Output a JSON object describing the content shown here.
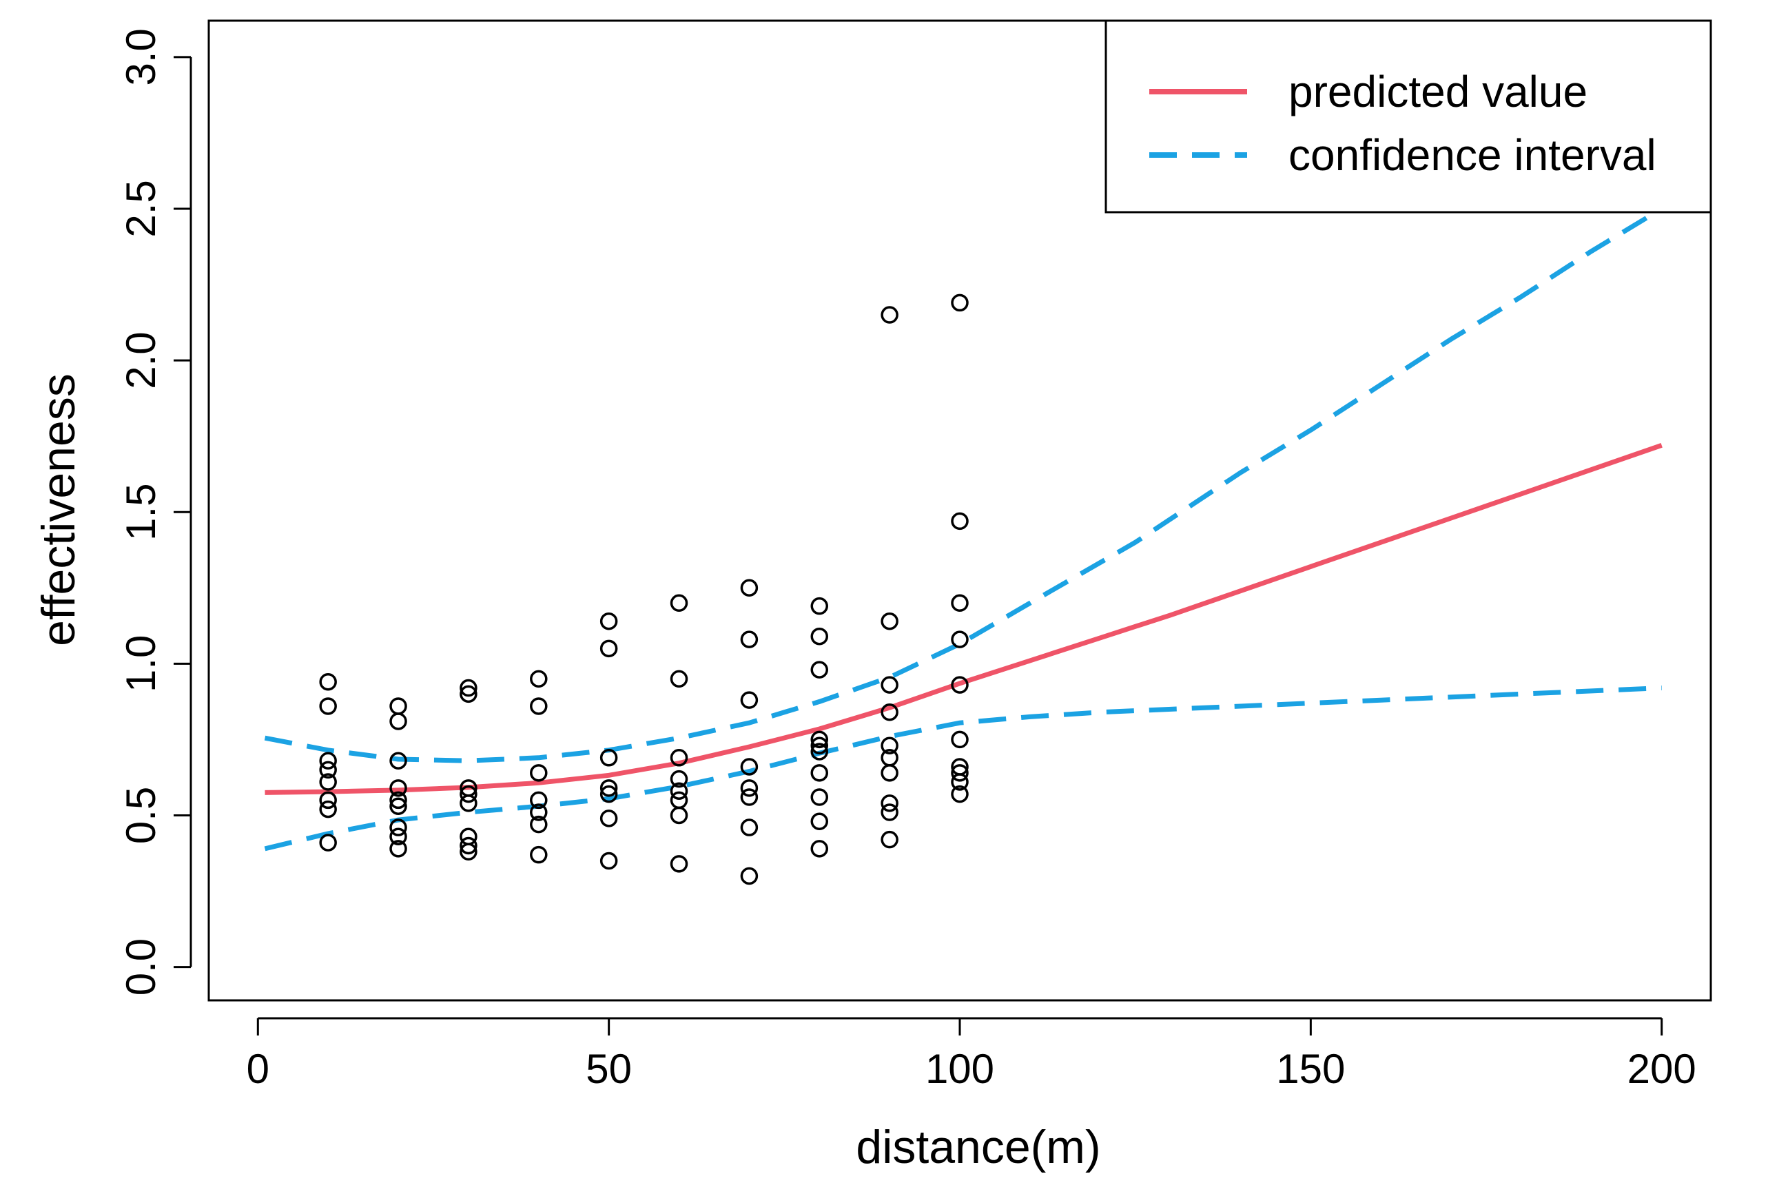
{
  "chart_data": {
    "type": "scatter",
    "title": "",
    "xlabel": "distance(m)",
    "ylabel": "effectiveness",
    "xlim": [
      -7,
      207
    ],
    "ylim": [
      -0.11,
      3.12
    ],
    "x_ticks": [
      0,
      50,
      100,
      150,
      200
    ],
    "y_ticks": [
      0.0,
      0.5,
      1.0,
      1.5,
      2.0,
      2.5,
      3.0
    ],
    "x_tick_labels": [
      "0",
      "50",
      "100",
      "150",
      "200"
    ],
    "y_tick_labels": [
      "0.0",
      "0.5",
      "1.0",
      "1.5",
      "2.0",
      "2.5",
      "3.0"
    ],
    "grid": false,
    "legend": {
      "position": "top-right",
      "entries": [
        {
          "label": "predicted value",
          "color": "#ef5468",
          "style": "solid"
        },
        {
          "label": "confidence interval",
          "color": "#1ba2e3",
          "style": "dashed"
        }
      ]
    },
    "series": [
      {
        "name": "observations",
        "kind": "points",
        "color": "#000000",
        "points": [
          [
            10,
            0.94
          ],
          [
            10,
            0.86
          ],
          [
            10,
            0.68
          ],
          [
            10,
            0.65
          ],
          [
            10,
            0.61
          ],
          [
            10,
            0.55
          ],
          [
            10,
            0.52
          ],
          [
            10,
            0.41
          ],
          [
            20,
            0.86
          ],
          [
            20,
            0.81
          ],
          [
            20,
            0.68
          ],
          [
            20,
            0.59
          ],
          [
            20,
            0.55
          ],
          [
            20,
            0.53
          ],
          [
            20,
            0.46
          ],
          [
            20,
            0.43
          ],
          [
            20,
            0.39
          ],
          [
            30,
            0.92
          ],
          [
            30,
            0.9
          ],
          [
            30,
            0.59
          ],
          [
            30,
            0.57
          ],
          [
            30,
            0.54
          ],
          [
            30,
            0.43
          ],
          [
            30,
            0.4
          ],
          [
            30,
            0.38
          ],
          [
            40,
            0.95
          ],
          [
            40,
            0.86
          ],
          [
            40,
            0.64
          ],
          [
            40,
            0.55
          ],
          [
            40,
            0.51
          ],
          [
            40,
            0.47
          ],
          [
            40,
            0.37
          ],
          [
            50,
            1.14
          ],
          [
            50,
            1.05
          ],
          [
            50,
            0.69
          ],
          [
            50,
            0.59
          ],
          [
            50,
            0.57
          ],
          [
            50,
            0.49
          ],
          [
            50,
            0.35
          ],
          [
            60,
            1.2
          ],
          [
            60,
            0.95
          ],
          [
            60,
            0.69
          ],
          [
            60,
            0.62
          ],
          [
            60,
            0.58
          ],
          [
            60,
            0.55
          ],
          [
            60,
            0.5
          ],
          [
            60,
            0.34
          ],
          [
            70,
            1.25
          ],
          [
            70,
            1.08
          ],
          [
            70,
            0.88
          ],
          [
            70,
            0.66
          ],
          [
            70,
            0.59
          ],
          [
            70,
            0.56
          ],
          [
            70,
            0.46
          ],
          [
            70,
            0.3
          ],
          [
            80,
            1.19
          ],
          [
            80,
            1.09
          ],
          [
            80,
            0.98
          ],
          [
            80,
            0.75
          ],
          [
            80,
            0.73
          ],
          [
            80,
            0.71
          ],
          [
            80,
            0.64
          ],
          [
            80,
            0.56
          ],
          [
            80,
            0.48
          ],
          [
            80,
            0.39
          ],
          [
            90,
            2.15
          ],
          [
            90,
            1.14
          ],
          [
            90,
            0.93
          ],
          [
            90,
            0.84
          ],
          [
            90,
            0.73
          ],
          [
            90,
            0.69
          ],
          [
            90,
            0.64
          ],
          [
            90,
            0.54
          ],
          [
            90,
            0.51
          ],
          [
            90,
            0.42
          ],
          [
            100,
            2.19
          ],
          [
            100,
            1.47
          ],
          [
            100,
            1.2
          ],
          [
            100,
            1.08
          ],
          [
            100,
            0.93
          ],
          [
            100,
            0.75
          ],
          [
            100,
            0.66
          ],
          [
            100,
            0.64
          ],
          [
            100,
            0.61
          ],
          [
            100,
            0.57
          ]
        ]
      },
      {
        "name": "predicted value",
        "kind": "line",
        "color": "#ef5468",
        "x": [
          1,
          10,
          20,
          30,
          40,
          50,
          60,
          70,
          80,
          90,
          100,
          110,
          120,
          130,
          140,
          150,
          160,
          170,
          180,
          190,
          200
        ],
        "values": [
          0.575,
          0.578,
          0.583,
          0.592,
          0.607,
          0.632,
          0.672,
          0.726,
          0.785,
          0.855,
          0.935,
          1.01,
          1.085,
          1.16,
          1.24,
          1.32,
          1.4,
          1.48,
          1.56,
          1.64,
          1.72
        ]
      },
      {
        "name": "confidence interval upper",
        "kind": "line",
        "color": "#1ba2e3",
        "dashed": true,
        "x": [
          1,
          10,
          20,
          30,
          40,
          50,
          60,
          70,
          80,
          90,
          100,
          110,
          125,
          140,
          150,
          160,
          170,
          180,
          190,
          200
        ],
        "values": [
          0.755,
          0.715,
          0.685,
          0.68,
          0.69,
          0.715,
          0.755,
          0.805,
          0.875,
          0.955,
          1.065,
          1.2,
          1.4,
          1.63,
          1.77,
          1.92,
          2.07,
          2.21,
          2.36,
          2.5
        ]
      },
      {
        "name": "confidence interval lower",
        "kind": "line",
        "color": "#1ba2e3",
        "dashed": true,
        "x": [
          1,
          10,
          20,
          30,
          40,
          50,
          60,
          70,
          80,
          90,
          100,
          110,
          120,
          140,
          160,
          180,
          200
        ],
        "values": [
          0.39,
          0.44,
          0.485,
          0.51,
          0.53,
          0.555,
          0.595,
          0.645,
          0.705,
          0.76,
          0.805,
          0.825,
          0.84,
          0.86,
          0.88,
          0.9,
          0.92
        ]
      }
    ]
  }
}
